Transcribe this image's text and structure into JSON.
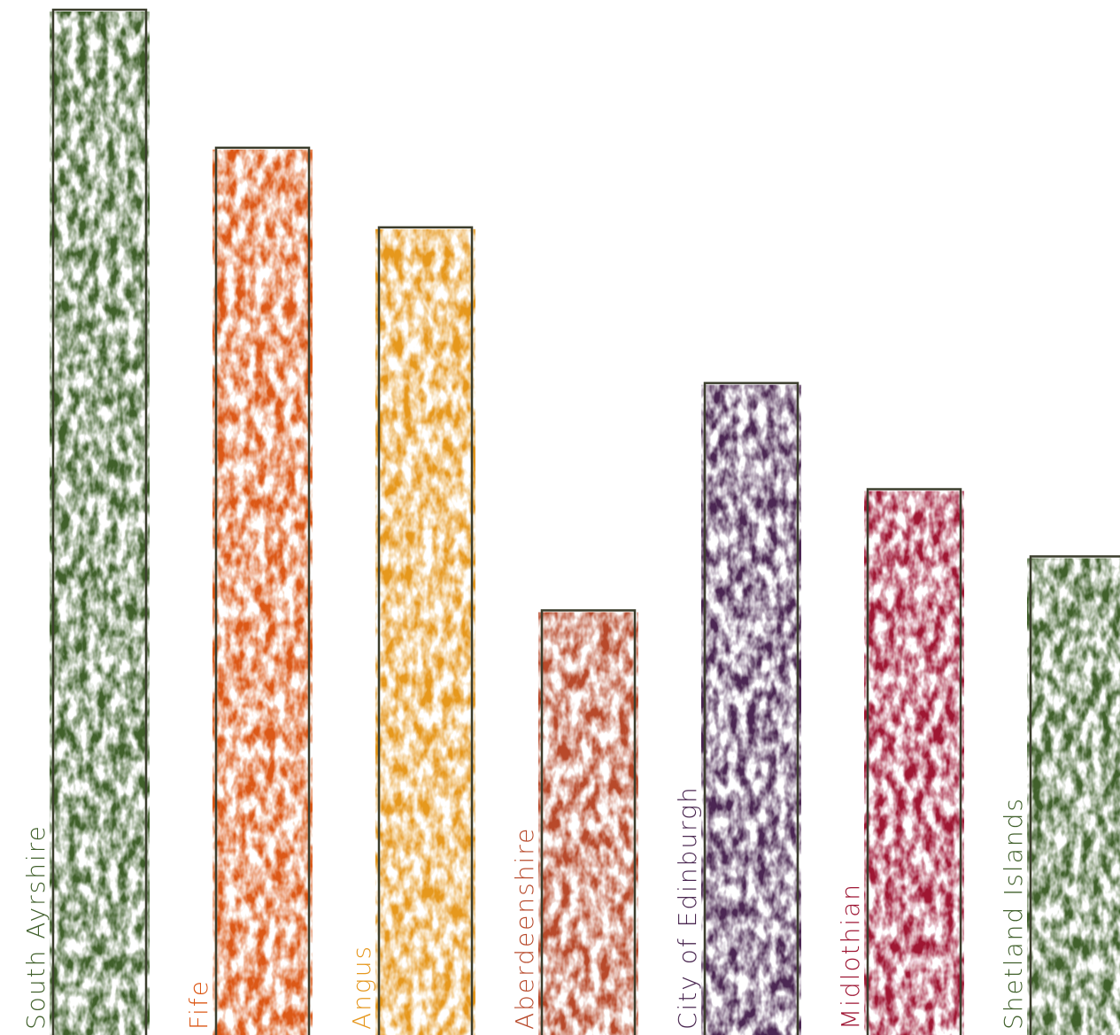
{
  "chart_data": {
    "type": "bar",
    "categories": [
      "South Ayrshire",
      "Fife",
      "Angus",
      "Aberdeenshire",
      "City of Edinburgh",
      "Midlothian",
      "Shetland Islands"
    ],
    "values": [
      1159,
      1003,
      913,
      480,
      737,
      617,
      541
    ],
    "colors": [
      "#40602b",
      "#dc5816",
      "#e6981f",
      "#b84a2b",
      "#4b2852",
      "#9e1533",
      "#40602b"
    ],
    "ylim": [
      0,
      1160
    ]
  }
}
